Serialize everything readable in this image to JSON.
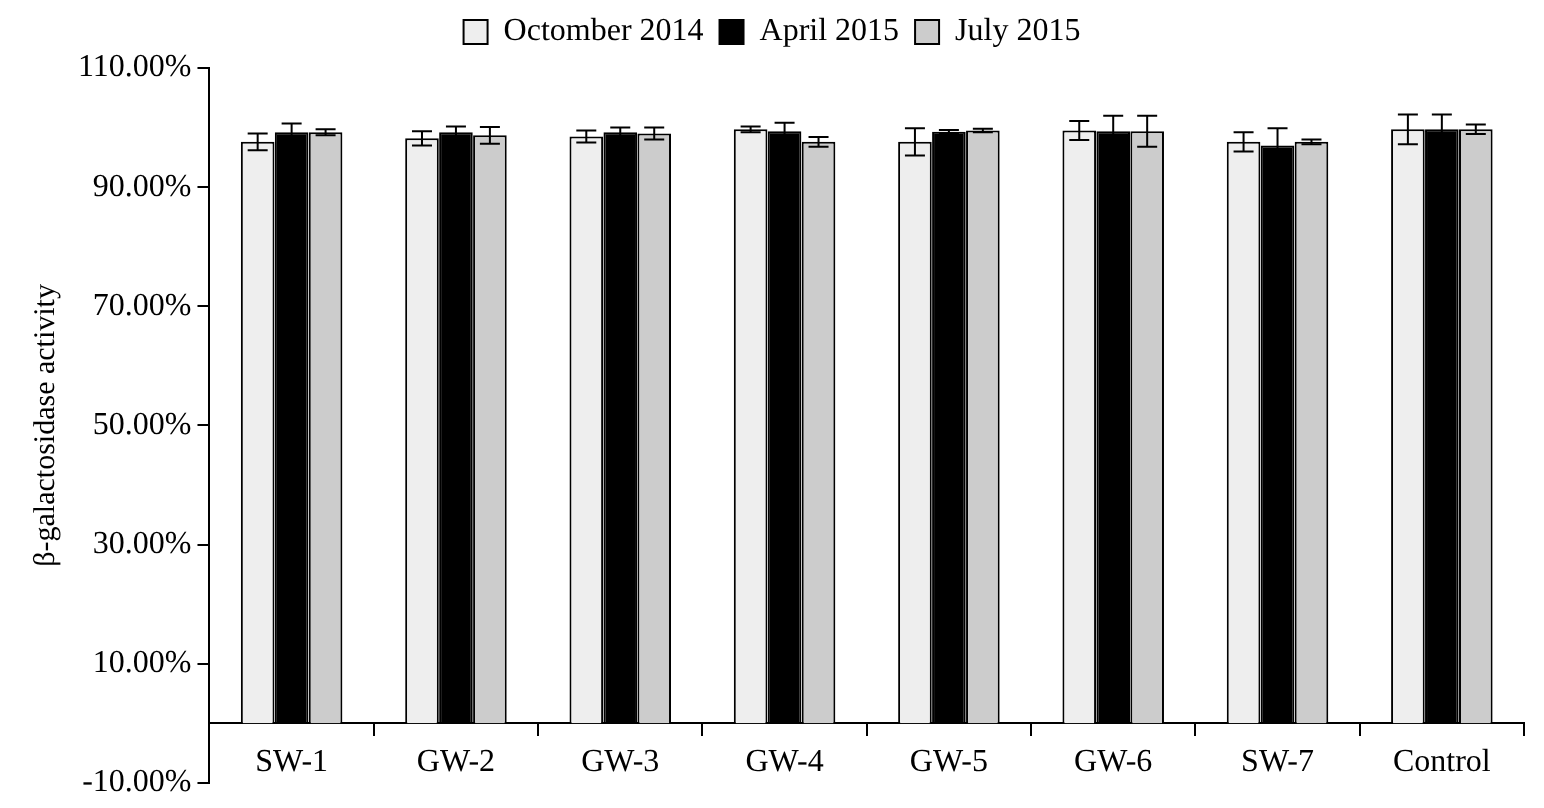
{
  "chart_data": {
    "type": "bar",
    "ylabel": "β-galactosidase activity",
    "categories": [
      "SW-1",
      "GW-2",
      "GW-3",
      "GW-4",
      "GW-5",
      "GW-6",
      "SW-7",
      "Control"
    ],
    "series": [
      {
        "name": "Octomber 2014",
        "color": "#eeeeee",
        "values": [
          97.6,
          98.2,
          98.5,
          99.7,
          97.6,
          99.5,
          97.6,
          99.7
        ],
        "errors": [
          1.4,
          1.2,
          1.0,
          0.5,
          2.3,
          1.6,
          1.6,
          2.5
        ]
      },
      {
        "name": "April 2015",
        "color": "#000000",
        "values": [
          99.2,
          99.2,
          99.2,
          99.4,
          99.3,
          99.4,
          97.0,
          99.7
        ],
        "errors": [
          1.5,
          1.0,
          0.8,
          1.4,
          0.3,
          2.6,
          2.9,
          2.5
        ]
      },
      {
        "name": "July 2015",
        "color": "#cccccc",
        "values": [
          99.2,
          98.7,
          99.0,
          97.6,
          99.5,
          99.4,
          97.6,
          99.7
        ],
        "errors": [
          0.5,
          1.4,
          1.0,
          0.8,
          0.3,
          2.6,
          0.4,
          0.8
        ]
      }
    ],
    "ylim": [
      -10,
      110
    ],
    "yticks": [
      {
        "value": -10,
        "label": "-10.00%"
      },
      {
        "value": 10,
        "label": "10.00%"
      },
      {
        "value": 30,
        "label": "30.00%"
      },
      {
        "value": 50,
        "label": "50.00%"
      },
      {
        "value": 70,
        "label": "70.00%"
      },
      {
        "value": 90,
        "label": "90.00%"
      },
      {
        "value": 110,
        "label": "110.00%"
      }
    ],
    "grid": false,
    "legend": "top"
  }
}
